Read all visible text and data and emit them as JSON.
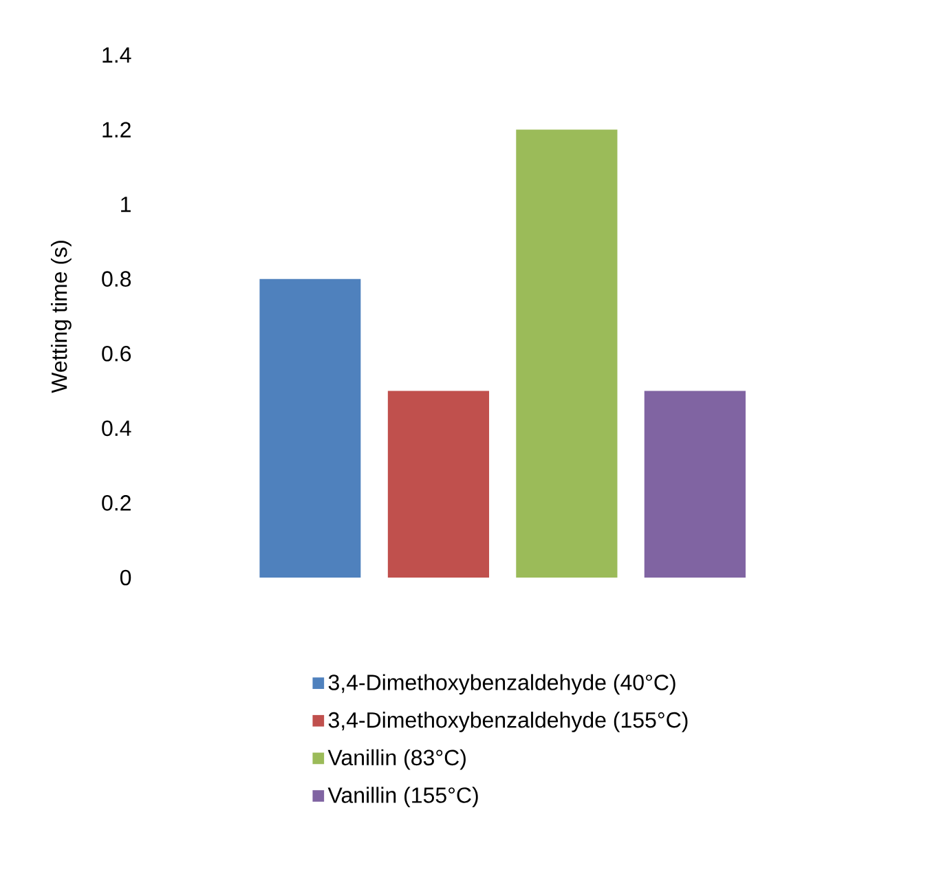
{
  "chart_data": {
    "type": "bar",
    "ylabel": "Wetting time (s)",
    "categories": [
      null
    ],
    "series": [
      {
        "name": "3,4-Dimethoxybenzaldehyde (40°C)",
        "color": "#4f81bd",
        "values": [
          0.8
        ]
      },
      {
        "name": "3,4-Dimethoxybenzaldehyde (155°C)",
        "color": "#c0504d",
        "values": [
          0.5
        ]
      },
      {
        "name": "Vanillin (83°C)",
        "color": "#9bbb59",
        "values": [
          1.2
        ]
      },
      {
        "name": "Vanillin (155°C)",
        "color": "#8064a2",
        "values": [
          0.5
        ]
      }
    ],
    "ylim": [
      0,
      1.4
    ],
    "yticks": [
      0,
      0.2,
      0.4,
      0.6,
      0.8,
      1,
      1.2,
      1.4
    ],
    "grid": false,
    "legend": "bottom"
  }
}
